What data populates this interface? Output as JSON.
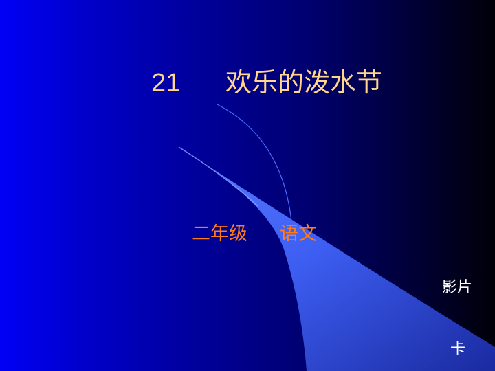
{
  "slide": {
    "title_number": "21",
    "title_text": "欢乐的泼水节",
    "grade": "二年级",
    "subject": "语文",
    "link_movie": "影片",
    "link_card": "卡"
  },
  "colors": {
    "background_left": "#0000f5",
    "background_right": "#000008",
    "wave_light": "#4a70ff",
    "wave_dark": "#1c2aa8",
    "title": "#ffd68a",
    "subtitle": "#ff7a1a",
    "link_text": "#ffffff"
  }
}
